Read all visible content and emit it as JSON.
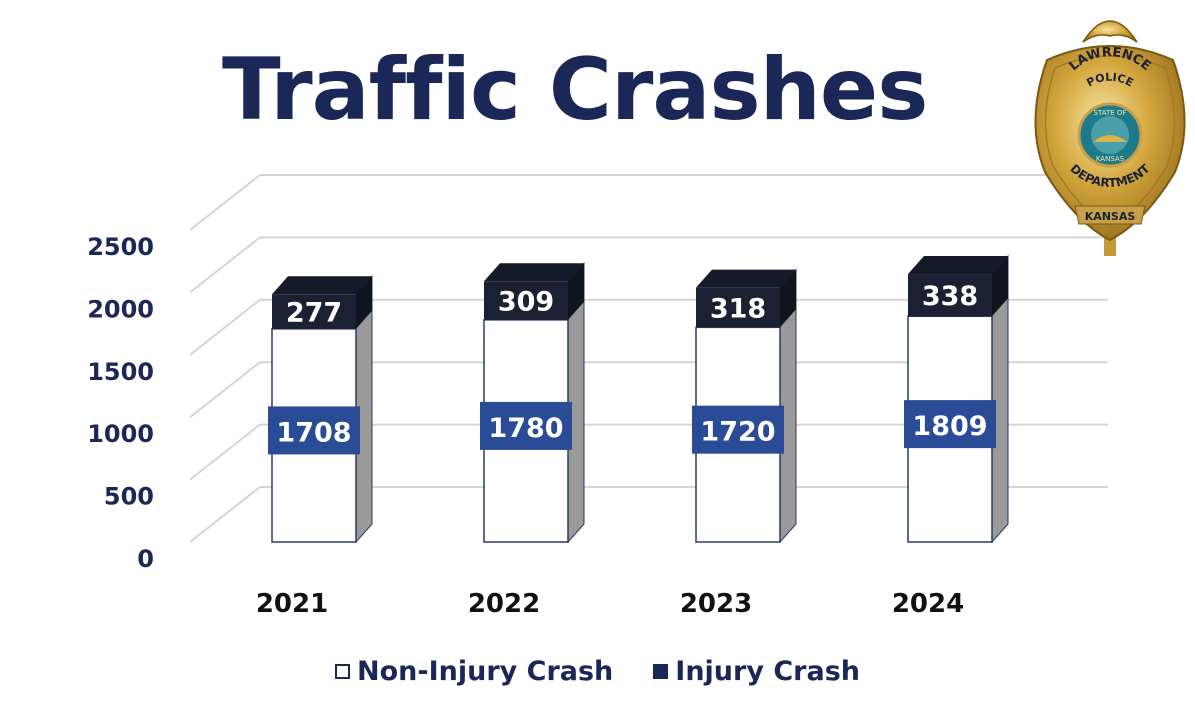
{
  "chart_data": {
    "type": "bar",
    "stacked": true,
    "title": "Traffic Crashes",
    "categories": [
      "2021",
      "2022",
      "2023",
      "2024"
    ],
    "series": [
      {
        "name": "Non-Injury Crash",
        "values": [
          1708,
          1780,
          1720,
          1809
        ]
      },
      {
        "name": "Injury Crash",
        "values": [
          277,
          309,
          318,
          338
        ]
      }
    ],
    "yticks": [
      "0",
      "500",
      "1000",
      "1500",
      "2000",
      "2500"
    ],
    "ylim": [
      0,
      2500
    ],
    "xlabel": "",
    "ylabel": "",
    "grid": true,
    "legend_position": "bottom"
  },
  "colors": {
    "title": "#1b2757",
    "injury": "#1b2132",
    "injury_top": "#151a28",
    "non_injury_face": "#ffffff",
    "non_injury_side": "#9a9a9a",
    "value_box": "#2a4c96",
    "grid": "#d4d4d4"
  },
  "badge": {
    "line1": "LAWRENCE",
    "line2": "POLICE",
    "seal_top": "STATE OF",
    "seal_bottom": "KANSAS",
    "line3": "DEPARTMENT",
    "line4": "KANSAS"
  }
}
